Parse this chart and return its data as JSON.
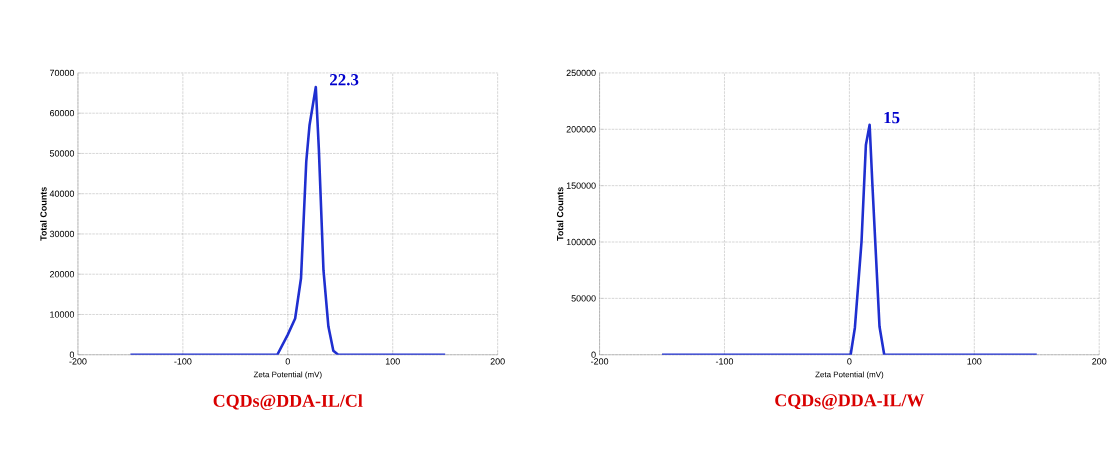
{
  "chart_data": [
    {
      "type": "line",
      "title": "CQDs@DDA-IL/Cl",
      "xlabel": "Zeta Potential (mV)",
      "ylabel": "Total Counts",
      "annotations": [
        "22.3"
      ],
      "x": [
        -150,
        -10,
        0,
        7,
        12.6,
        17.6,
        20.7,
        26.7,
        29.6,
        34,
        38.7,
        43.4,
        48,
        150
      ],
      "series": [
        {
          "color": "#1f2fd0",
          "values": [
            0,
            0,
            5000,
            9000,
            19000,
            48000,
            57000,
            66500,
            51000,
            21000,
            7000,
            1000,
            0,
            0
          ]
        }
      ],
      "xlim": [
        -200,
        200
      ],
      "xticks": [
        -200,
        -100,
        0,
        100,
        200
      ],
      "ylim": [
        0,
        70000
      ],
      "yticks": [
        0,
        10000,
        20000,
        30000,
        40000,
        50000,
        60000,
        70000
      ],
      "grid": true,
      "marker": "none",
      "line_style": "solid"
    },
    {
      "type": "line",
      "title": "CQDs@DDA-IL/W",
      "xlabel": "Zeta Potential (mV)",
      "ylabel": "Total Counts",
      "annotations": [
        "15"
      ],
      "x": [
        -150,
        1,
        4.4,
        9.7,
        13.2,
        16.2,
        18.5,
        24.1,
        27.9,
        150
      ],
      "series": [
        {
          "color": "#1f2fd0",
          "values": [
            0,
            0,
            24000,
            100000,
            186000,
            204000,
            149000,
            25000,
            0,
            0
          ]
        }
      ],
      "xlim": [
        -200,
        200
      ],
      "xticks": [
        -200,
        -100,
        0,
        100,
        200
      ],
      "ylim": [
        0,
        250000
      ],
      "yticks": [
        0,
        50000,
        100000,
        150000,
        200000,
        250000
      ],
      "grid": true,
      "marker": "none",
      "line_style": "solid"
    }
  ]
}
